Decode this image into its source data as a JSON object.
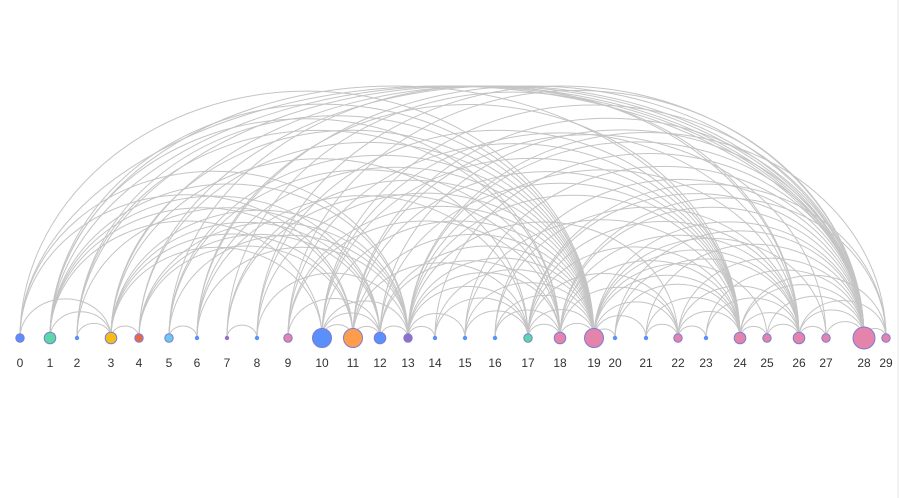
{
  "diagram": {
    "type": "arc-diagram",
    "edge_color": "#c4c4c4",
    "nodes": [
      {
        "id": "0",
        "label": "0",
        "size": 2,
        "color": "#5b8ff9"
      },
      {
        "id": "1",
        "label": "1",
        "size": 3,
        "color": "#5ad8a6"
      },
      {
        "id": "2",
        "label": "2",
        "size": 1,
        "color": "#5b8ff9"
      },
      {
        "id": "3",
        "label": "3",
        "size": 3,
        "color": "#f6bd16"
      },
      {
        "id": "4",
        "label": "4",
        "size": 2,
        "color": "#e8684a"
      },
      {
        "id": "5",
        "label": "5",
        "size": 2,
        "color": "#6dc8ec"
      },
      {
        "id": "6",
        "label": "6",
        "size": 1,
        "color": "#5b8ff9"
      },
      {
        "id": "7",
        "label": "7",
        "size": 1,
        "color": "#9270ca"
      },
      {
        "id": "8",
        "label": "8",
        "size": 1,
        "color": "#5b8ff9"
      },
      {
        "id": "9",
        "label": "9",
        "size": 2,
        "color": "#e484aa"
      },
      {
        "id": "10",
        "label": "10",
        "size": 5,
        "color": "#5b8ff9"
      },
      {
        "id": "11",
        "label": "11",
        "size": 5,
        "color": "#ff9d4d"
      },
      {
        "id": "12",
        "label": "12",
        "size": 3,
        "color": "#5b8ff9"
      },
      {
        "id": "13",
        "label": "13",
        "size": 2,
        "color": "#9270ca"
      },
      {
        "id": "14",
        "label": "14",
        "size": 1,
        "color": "#5b8ff9"
      },
      {
        "id": "15",
        "label": "15",
        "size": 1,
        "color": "#5b8ff9"
      },
      {
        "id": "16",
        "label": "16",
        "size": 1,
        "color": "#5b8ff9"
      },
      {
        "id": "17",
        "label": "17",
        "size": 2,
        "color": "#5ad8a6"
      },
      {
        "id": "18",
        "label": "18",
        "size": 3,
        "color": "#e484aa"
      },
      {
        "id": "19",
        "label": "19",
        "size": 5,
        "color": "#e484aa"
      },
      {
        "id": "20",
        "label": "20",
        "size": 1,
        "color": "#5b8ff9"
      },
      {
        "id": "21",
        "label": "21",
        "size": 1,
        "color": "#5b8ff9"
      },
      {
        "id": "22",
        "label": "22",
        "size": 2,
        "color": "#e484aa"
      },
      {
        "id": "23",
        "label": "23",
        "size": 1,
        "color": "#5b8ff9"
      },
      {
        "id": "24",
        "label": "24",
        "size": 3,
        "color": "#e484aa"
      },
      {
        "id": "25",
        "label": "25",
        "size": 2,
        "color": "#e484aa"
      },
      {
        "id": "26",
        "label": "26",
        "size": 3,
        "color": "#e484aa"
      },
      {
        "id": "27",
        "label": "27",
        "size": 2,
        "color": "#e484aa"
      },
      {
        "id": "28",
        "label": "28",
        "size": 6,
        "color": "#e484aa"
      },
      {
        "id": "29",
        "label": "29",
        "size": 2,
        "color": "#e484aa"
      }
    ],
    "edges": [
      [
        "0",
        "28"
      ],
      [
        "0",
        "19"
      ],
      [
        "0",
        "13"
      ],
      [
        "0",
        "11"
      ],
      [
        "0",
        "3"
      ],
      [
        "1",
        "28"
      ],
      [
        "1",
        "19"
      ],
      [
        "1",
        "24"
      ],
      [
        "1",
        "18"
      ],
      [
        "1",
        "12"
      ],
      [
        "1",
        "13"
      ],
      [
        "1",
        "11"
      ],
      [
        "1",
        "10"
      ],
      [
        "1",
        "3"
      ],
      [
        "2",
        "19"
      ],
      [
        "2",
        "28"
      ],
      [
        "2",
        "18"
      ],
      [
        "2",
        "12"
      ],
      [
        "2",
        "3"
      ],
      [
        "3",
        "28"
      ],
      [
        "3",
        "19"
      ],
      [
        "3",
        "17"
      ],
      [
        "3",
        "13"
      ],
      [
        "3",
        "12"
      ],
      [
        "3",
        "11"
      ],
      [
        "3",
        "10"
      ],
      [
        "3",
        "4"
      ],
      [
        "4",
        "28"
      ],
      [
        "4",
        "19"
      ],
      [
        "4",
        "12"
      ],
      [
        "4",
        "13"
      ],
      [
        "4",
        "11"
      ],
      [
        "5",
        "26"
      ],
      [
        "5",
        "19"
      ],
      [
        "5",
        "18"
      ],
      [
        "5",
        "13"
      ],
      [
        "5",
        "6"
      ],
      [
        "6",
        "28"
      ],
      [
        "6",
        "24"
      ],
      [
        "6",
        "19"
      ],
      [
        "6",
        "17"
      ],
      [
        "6",
        "13"
      ],
      [
        "7",
        "26"
      ],
      [
        "7",
        "19"
      ],
      [
        "7",
        "18"
      ],
      [
        "7",
        "8"
      ],
      [
        "8",
        "28"
      ],
      [
        "8",
        "24"
      ],
      [
        "8",
        "19"
      ],
      [
        "8",
        "13"
      ],
      [
        "9",
        "28"
      ],
      [
        "9",
        "24"
      ],
      [
        "9",
        "19"
      ],
      [
        "9",
        "12"
      ],
      [
        "9",
        "18"
      ],
      [
        "10",
        "28"
      ],
      [
        "10",
        "26"
      ],
      [
        "10",
        "24"
      ],
      [
        "10",
        "19"
      ],
      [
        "10",
        "13"
      ],
      [
        "10",
        "12"
      ],
      [
        "10",
        "11"
      ],
      [
        "11",
        "28"
      ],
      [
        "11",
        "27"
      ],
      [
        "11",
        "24"
      ],
      [
        "11",
        "19"
      ],
      [
        "11",
        "17"
      ],
      [
        "11",
        "12"
      ],
      [
        "12",
        "28"
      ],
      [
        "12",
        "24"
      ],
      [
        "12",
        "19"
      ],
      [
        "12",
        "18"
      ],
      [
        "12",
        "13"
      ],
      [
        "13",
        "29"
      ],
      [
        "13",
        "28"
      ],
      [
        "13",
        "26"
      ],
      [
        "13",
        "24"
      ],
      [
        "13",
        "22"
      ],
      [
        "13",
        "19"
      ],
      [
        "13",
        "18"
      ],
      [
        "13",
        "17"
      ],
      [
        "13",
        "15"
      ],
      [
        "13",
        "14"
      ],
      [
        "14",
        "28"
      ],
      [
        "14",
        "19"
      ],
      [
        "14",
        "17"
      ],
      [
        "15",
        "28"
      ],
      [
        "15",
        "24"
      ],
      [
        "15",
        "19"
      ],
      [
        "15",
        "17"
      ],
      [
        "16",
        "28"
      ],
      [
        "16",
        "26"
      ],
      [
        "16",
        "19"
      ],
      [
        "16",
        "18"
      ],
      [
        "17",
        "29"
      ],
      [
        "17",
        "28"
      ],
      [
        "17",
        "26"
      ],
      [
        "17",
        "24"
      ],
      [
        "17",
        "22"
      ],
      [
        "17",
        "19"
      ],
      [
        "17",
        "18"
      ],
      [
        "18",
        "29"
      ],
      [
        "18",
        "28"
      ],
      [
        "18",
        "26"
      ],
      [
        "18",
        "24"
      ],
      [
        "18",
        "22"
      ],
      [
        "18",
        "19"
      ],
      [
        "19",
        "28"
      ],
      [
        "19",
        "27"
      ],
      [
        "19",
        "26"
      ],
      [
        "19",
        "25"
      ],
      [
        "19",
        "24"
      ],
      [
        "19",
        "22"
      ],
      [
        "19",
        "21"
      ],
      [
        "19",
        "20"
      ],
      [
        "20",
        "28"
      ],
      [
        "20",
        "26"
      ],
      [
        "20",
        "24"
      ],
      [
        "21",
        "28"
      ],
      [
        "21",
        "24"
      ],
      [
        "21",
        "22"
      ],
      [
        "22",
        "28"
      ],
      [
        "22",
        "26"
      ],
      [
        "22",
        "24"
      ],
      [
        "22",
        "23"
      ],
      [
        "23",
        "28"
      ],
      [
        "23",
        "26"
      ],
      [
        "24",
        "29"
      ],
      [
        "24",
        "28"
      ],
      [
        "24",
        "26"
      ],
      [
        "24",
        "25"
      ],
      [
        "25",
        "28"
      ],
      [
        "25",
        "26"
      ],
      [
        "26",
        "29"
      ],
      [
        "26",
        "28"
      ],
      [
        "26",
        "27"
      ],
      [
        "27",
        "28"
      ],
      [
        "28",
        "29"
      ]
    ]
  }
}
